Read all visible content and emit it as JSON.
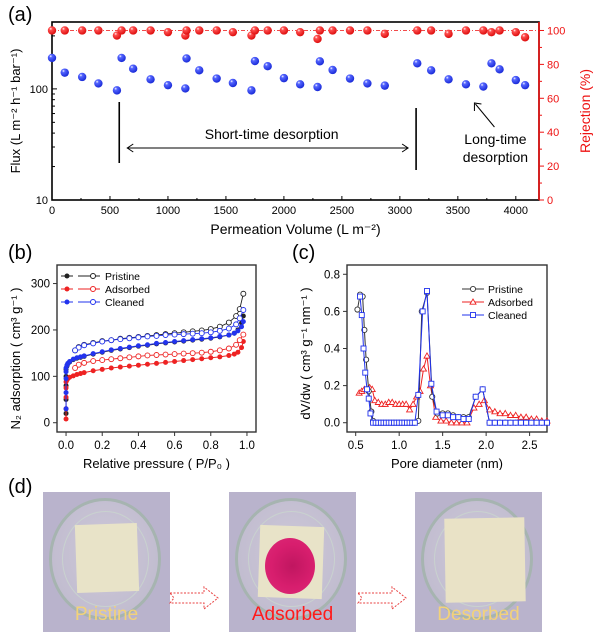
{
  "figure": {
    "panel_labels": {
      "a": "(a)",
      "b": "(b)",
      "c": "(c)",
      "d": "(d)"
    }
  },
  "chart_data": [
    {
      "id": "a",
      "type": "scatter",
      "title": "",
      "xlabel": "Permeation Volume (L m⁻²)",
      "ylabel_left": "Flux (L m⁻² h⁻¹ bar⁻¹)",
      "ylabel_right": "Rejection (%)",
      "xlim": [
        0,
        4200
      ],
      "ylim_left": [
        10,
        400
      ],
      "yscale_left": "log",
      "ylim_right": [
        0,
        105
      ],
      "xticks": [
        0,
        500,
        1000,
        1500,
        2000,
        2500,
        3000,
        3500,
        4000
      ],
      "yticks_left": [
        10,
        100
      ],
      "yticks_right": [
        0,
        20,
        40,
        60,
        80,
        100
      ],
      "colors": {
        "flux": "#2233ee",
        "rejection": "#ee1111",
        "right_axis": "#ee1111"
      },
      "reference_line_right": 100,
      "series": [
        {
          "name": "Flux",
          "axis": "left",
          "x": [
            0,
            110,
            260,
            400,
            560,
            600,
            700,
            850,
            1000,
            1150,
            1160,
            1270,
            1420,
            1560,
            1720,
            1750,
            1860,
            2000,
            2140,
            2290,
            2310,
            2420,
            2570,
            2720,
            2870,
            3150,
            3270,
            3420,
            3570,
            3720,
            3790,
            3860,
            4000,
            4080
          ],
          "y": [
            190,
            140,
            128,
            112,
            97,
            190,
            152,
            122,
            108,
            101,
            188,
            147,
            124,
            113,
            97,
            178,
            160,
            125,
            110,
            104,
            177,
            148,
            124,
            112,
            107,
            170,
            147,
            122,
            110,
            105,
            170,
            150,
            120,
            108
          ]
        },
        {
          "name": "Rejection",
          "axis": "right",
          "x": [
            0,
            110,
            260,
            400,
            560,
            600,
            700,
            850,
            1000,
            1150,
            1160,
            1270,
            1420,
            1560,
            1720,
            1750,
            1860,
            2000,
            2140,
            2290,
            2310,
            2420,
            2570,
            2720,
            2870,
            3150,
            3270,
            3420,
            3570,
            3720,
            3790,
            3860,
            4000,
            4080
          ],
          "y": [
            100,
            100,
            100,
            100,
            97,
            100,
            100,
            100,
            99,
            97,
            100,
            100,
            100,
            99,
            97,
            100,
            100,
            100,
            99,
            95,
            100,
            100,
            100,
            100,
            98,
            100,
            100,
            98,
            100,
            100,
            99,
            100,
            99,
            96
          ]
        }
      ],
      "annotations": [
        {
          "text": "Short-time desorption",
          "x_range": [
            580,
            3140
          ],
          "type": "double-arrow"
        },
        {
          "text_line1": "Long-time",
          "text_line2": "desorption",
          "points_to_x": 3600
        }
      ]
    },
    {
      "id": "b",
      "type": "line",
      "xlabel": "Relative pressure ( P/P₀ )",
      "ylabel": "N₂ adsorption ( cm³ g⁻¹ )",
      "xlim": [
        -0.05,
        1.05
      ],
      "ylim": [
        -20,
        340
      ],
      "xticks": [
        0.0,
        0.2,
        0.4,
        0.6,
        0.8,
        1.0
      ],
      "yticks": [
        0,
        100,
        200,
        300
      ],
      "legend": {
        "placement": "top-left",
        "entries": [
          "Pristine",
          "Adsorbed",
          "Cleaned"
        ]
      },
      "x_adsorption": [
        0.0,
        0.0,
        0.0,
        0.0,
        0.0,
        0.005,
        0.01,
        0.02,
        0.04,
        0.06,
        0.08,
        0.1,
        0.15,
        0.2,
        0.25,
        0.3,
        0.35,
        0.4,
        0.45,
        0.5,
        0.55,
        0.6,
        0.65,
        0.7,
        0.75,
        0.8,
        0.85,
        0.9,
        0.93,
        0.95,
        0.97,
        0.98
      ],
      "x_desorption": [
        0.98,
        0.96,
        0.94,
        0.9,
        0.85,
        0.8,
        0.75,
        0.7,
        0.65,
        0.6,
        0.55,
        0.5,
        0.45,
        0.4,
        0.35,
        0.3,
        0.25,
        0.2,
        0.15,
        0.1,
        0.07,
        0.05
      ],
      "series": [
        {
          "name": "Pristine",
          "color": "#222222",
          "adsorption": [
            20,
            50,
            80,
            100,
            115,
            122,
            127,
            131,
            136,
            139,
            141,
            143,
            148,
            152,
            156,
            159,
            162,
            165,
            167,
            170,
            172,
            174,
            176,
            178,
            180,
            182,
            185,
            189,
            193,
            200,
            215,
            230
          ],
          "desorption": [
            278,
            245,
            230,
            216,
            207,
            202,
            199,
            197,
            195,
            193,
            191,
            189,
            187,
            185,
            183,
            181,
            178,
            176,
            172,
            168,
            163,
            156
          ]
        },
        {
          "name": "Adsorbed",
          "color": "#ee2222",
          "adsorption": [
            8,
            30,
            55,
            75,
            88,
            92,
            95,
            98,
            101,
            104,
            106,
            108,
            112,
            115,
            118,
            120,
            122,
            124,
            126,
            128,
            130,
            132,
            134,
            136,
            138,
            140,
            142,
            145,
            148,
            152,
            162,
            175
          ],
          "desorption": [
            190,
            178,
            168,
            160,
            156,
            153,
            151,
            150,
            149,
            148,
            147,
            146,
            145,
            143,
            141,
            139,
            137,
            135,
            133,
            129,
            125,
            118
          ]
        },
        {
          "name": "Cleaned",
          "color": "#2233ee",
          "adsorption": [
            30,
            65,
            95,
            110,
            118,
            124,
            128,
            132,
            137,
            140,
            142,
            144,
            149,
            153,
            157,
            160,
            163,
            166,
            168,
            171,
            173,
            175,
            177,
            179,
            181,
            183,
            186,
            189,
            193,
            198,
            207,
            218
          ],
          "desorption": [
            243,
            225,
            212,
            203,
            198,
            195,
            193,
            192,
            191,
            190,
            189,
            187,
            186,
            184,
            182,
            180,
            178,
            175,
            171,
            167,
            162,
            156
          ]
        }
      ]
    },
    {
      "id": "c",
      "type": "line",
      "xlabel": "Pore diameter (nm)",
      "ylabel": "dV/dw ( cm³ g⁻¹ nm⁻¹ )",
      "xlim": [
        0.4,
        2.7
      ],
      "ylim": [
        -0.05,
        0.85
      ],
      "xticks": [
        0.5,
        1.0,
        1.5,
        2.0,
        2.5
      ],
      "yticks": [
        0.0,
        0.2,
        0.4,
        0.6,
        0.8
      ],
      "legend": {
        "placement": "top-right",
        "entries": [
          "Pristine",
          "Adsorbed",
          "Cleaned"
        ]
      },
      "series": [
        {
          "name": "Pristine",
          "color": "#333333",
          "marker": "circle",
          "x": [
            0.52,
            0.55,
            0.58,
            0.6,
            0.62,
            0.65,
            0.68,
            0.7,
            0.73,
            0.76,
            0.79,
            0.82,
            0.85,
            0.88,
            0.91,
            0.94,
            0.97,
            1.0,
            1.03,
            1.06,
            1.09,
            1.12,
            1.15,
            1.18,
            1.22,
            1.26,
            1.32,
            1.38,
            1.44,
            1.5,
            1.56,
            1.62,
            1.68,
            1.74,
            1.8,
            1.88,
            1.96,
            2.04,
            2.1,
            2.16,
            2.22,
            2.28,
            2.34,
            2.4,
            2.46,
            2.52,
            2.58,
            2.64,
            2.7
          ],
          "y": [
            0.61,
            0.69,
            0.68,
            0.5,
            0.34,
            0.17,
            0.06,
            0.01,
            0,
            0,
            0,
            0,
            0,
            0,
            0,
            0,
            0,
            0,
            0,
            0,
            0,
            0,
            0,
            0,
            0.01,
            0.6,
            0.7,
            0.14,
            0.05,
            0.05,
            0.05,
            0.04,
            0.03,
            0.03,
            0.03,
            0.14,
            0.18,
            0,
            0,
            0,
            0,
            0,
            0,
            0,
            0,
            0,
            0,
            0,
            0
          ]
        },
        {
          "name": "Adsorbed",
          "color": "#ee2222",
          "marker": "triangle",
          "x": [
            0.54,
            0.57,
            0.6,
            0.63,
            0.66,
            0.69,
            0.72,
            0.76,
            0.8,
            0.84,
            0.88,
            0.92,
            0.96,
            1.0,
            1.04,
            1.08,
            1.12,
            1.16,
            1.2,
            1.24,
            1.28,
            1.32,
            1.36,
            1.42,
            1.48,
            1.54,
            1.6,
            1.66,
            1.72,
            1.78,
            1.86,
            1.92,
            1.98,
            2.04,
            2.1,
            2.16,
            2.22,
            2.28,
            2.34,
            2.4,
            2.46,
            2.52,
            2.58,
            2.64,
            2.7
          ],
          "y": [
            0.16,
            0.17,
            0.18,
            0.18,
            0.19,
            0.18,
            0.12,
            0.11,
            0.1,
            0.1,
            0.11,
            0.11,
            0.1,
            0.1,
            0.1,
            0.1,
            0.07,
            0.1,
            0.14,
            0.17,
            0.29,
            0.36,
            0.2,
            0.03,
            0.01,
            0.01,
            0.0,
            0.0,
            0.0,
            0.0,
            0.08,
            0.1,
            0.12,
            0.07,
            0.06,
            0.05,
            0.05,
            0.04,
            0.04,
            0.03,
            0.03,
            0.02,
            0.02,
            0.01,
            0.01
          ]
        },
        {
          "name": "Cleaned",
          "color": "#2233ee",
          "marker": "square",
          "x": [
            0.55,
            0.57,
            0.59,
            0.61,
            0.63,
            0.65,
            0.67,
            0.7,
            0.73,
            0.76,
            0.79,
            0.82,
            0.85,
            0.88,
            0.91,
            0.94,
            0.97,
            1.0,
            1.03,
            1.06,
            1.09,
            1.12,
            1.15,
            1.18,
            1.22,
            1.27,
            1.32,
            1.37,
            1.43,
            1.5,
            1.56,
            1.62,
            1.68,
            1.74,
            1.8,
            1.88,
            1.96,
            2.04,
            2.1,
            2.16,
            2.22,
            2.28,
            2.34,
            2.4,
            2.46,
            2.52,
            2.58,
            2.64,
            2.7
          ],
          "y": [
            0.68,
            0.58,
            0.4,
            0.27,
            0.18,
            0.13,
            0.05,
            0.0,
            0,
            0,
            0,
            0,
            0,
            0,
            0,
            0,
            0,
            0,
            0,
            0,
            0,
            0,
            0,
            0,
            0.15,
            0.6,
            0.71,
            0.21,
            0.06,
            0.04,
            0.04,
            0.03,
            0.03,
            0.02,
            0.02,
            0.14,
            0.18,
            0,
            0,
            0,
            0,
            0,
            0,
            0,
            0,
            0,
            0,
            0,
            0
          ]
        }
      ]
    }
  ],
  "photos": {
    "items": [
      {
        "caption": "Pristine",
        "caption_color": "#f2d27a",
        "state": "pristine"
      },
      {
        "caption": "Adsorbed",
        "caption_color": "#ff1a1a",
        "state": "adsorbed"
      },
      {
        "caption": "Desorbed",
        "caption_color": "#f2d27a",
        "state": "desorbed"
      }
    ],
    "arrow_color": "#e84040"
  }
}
